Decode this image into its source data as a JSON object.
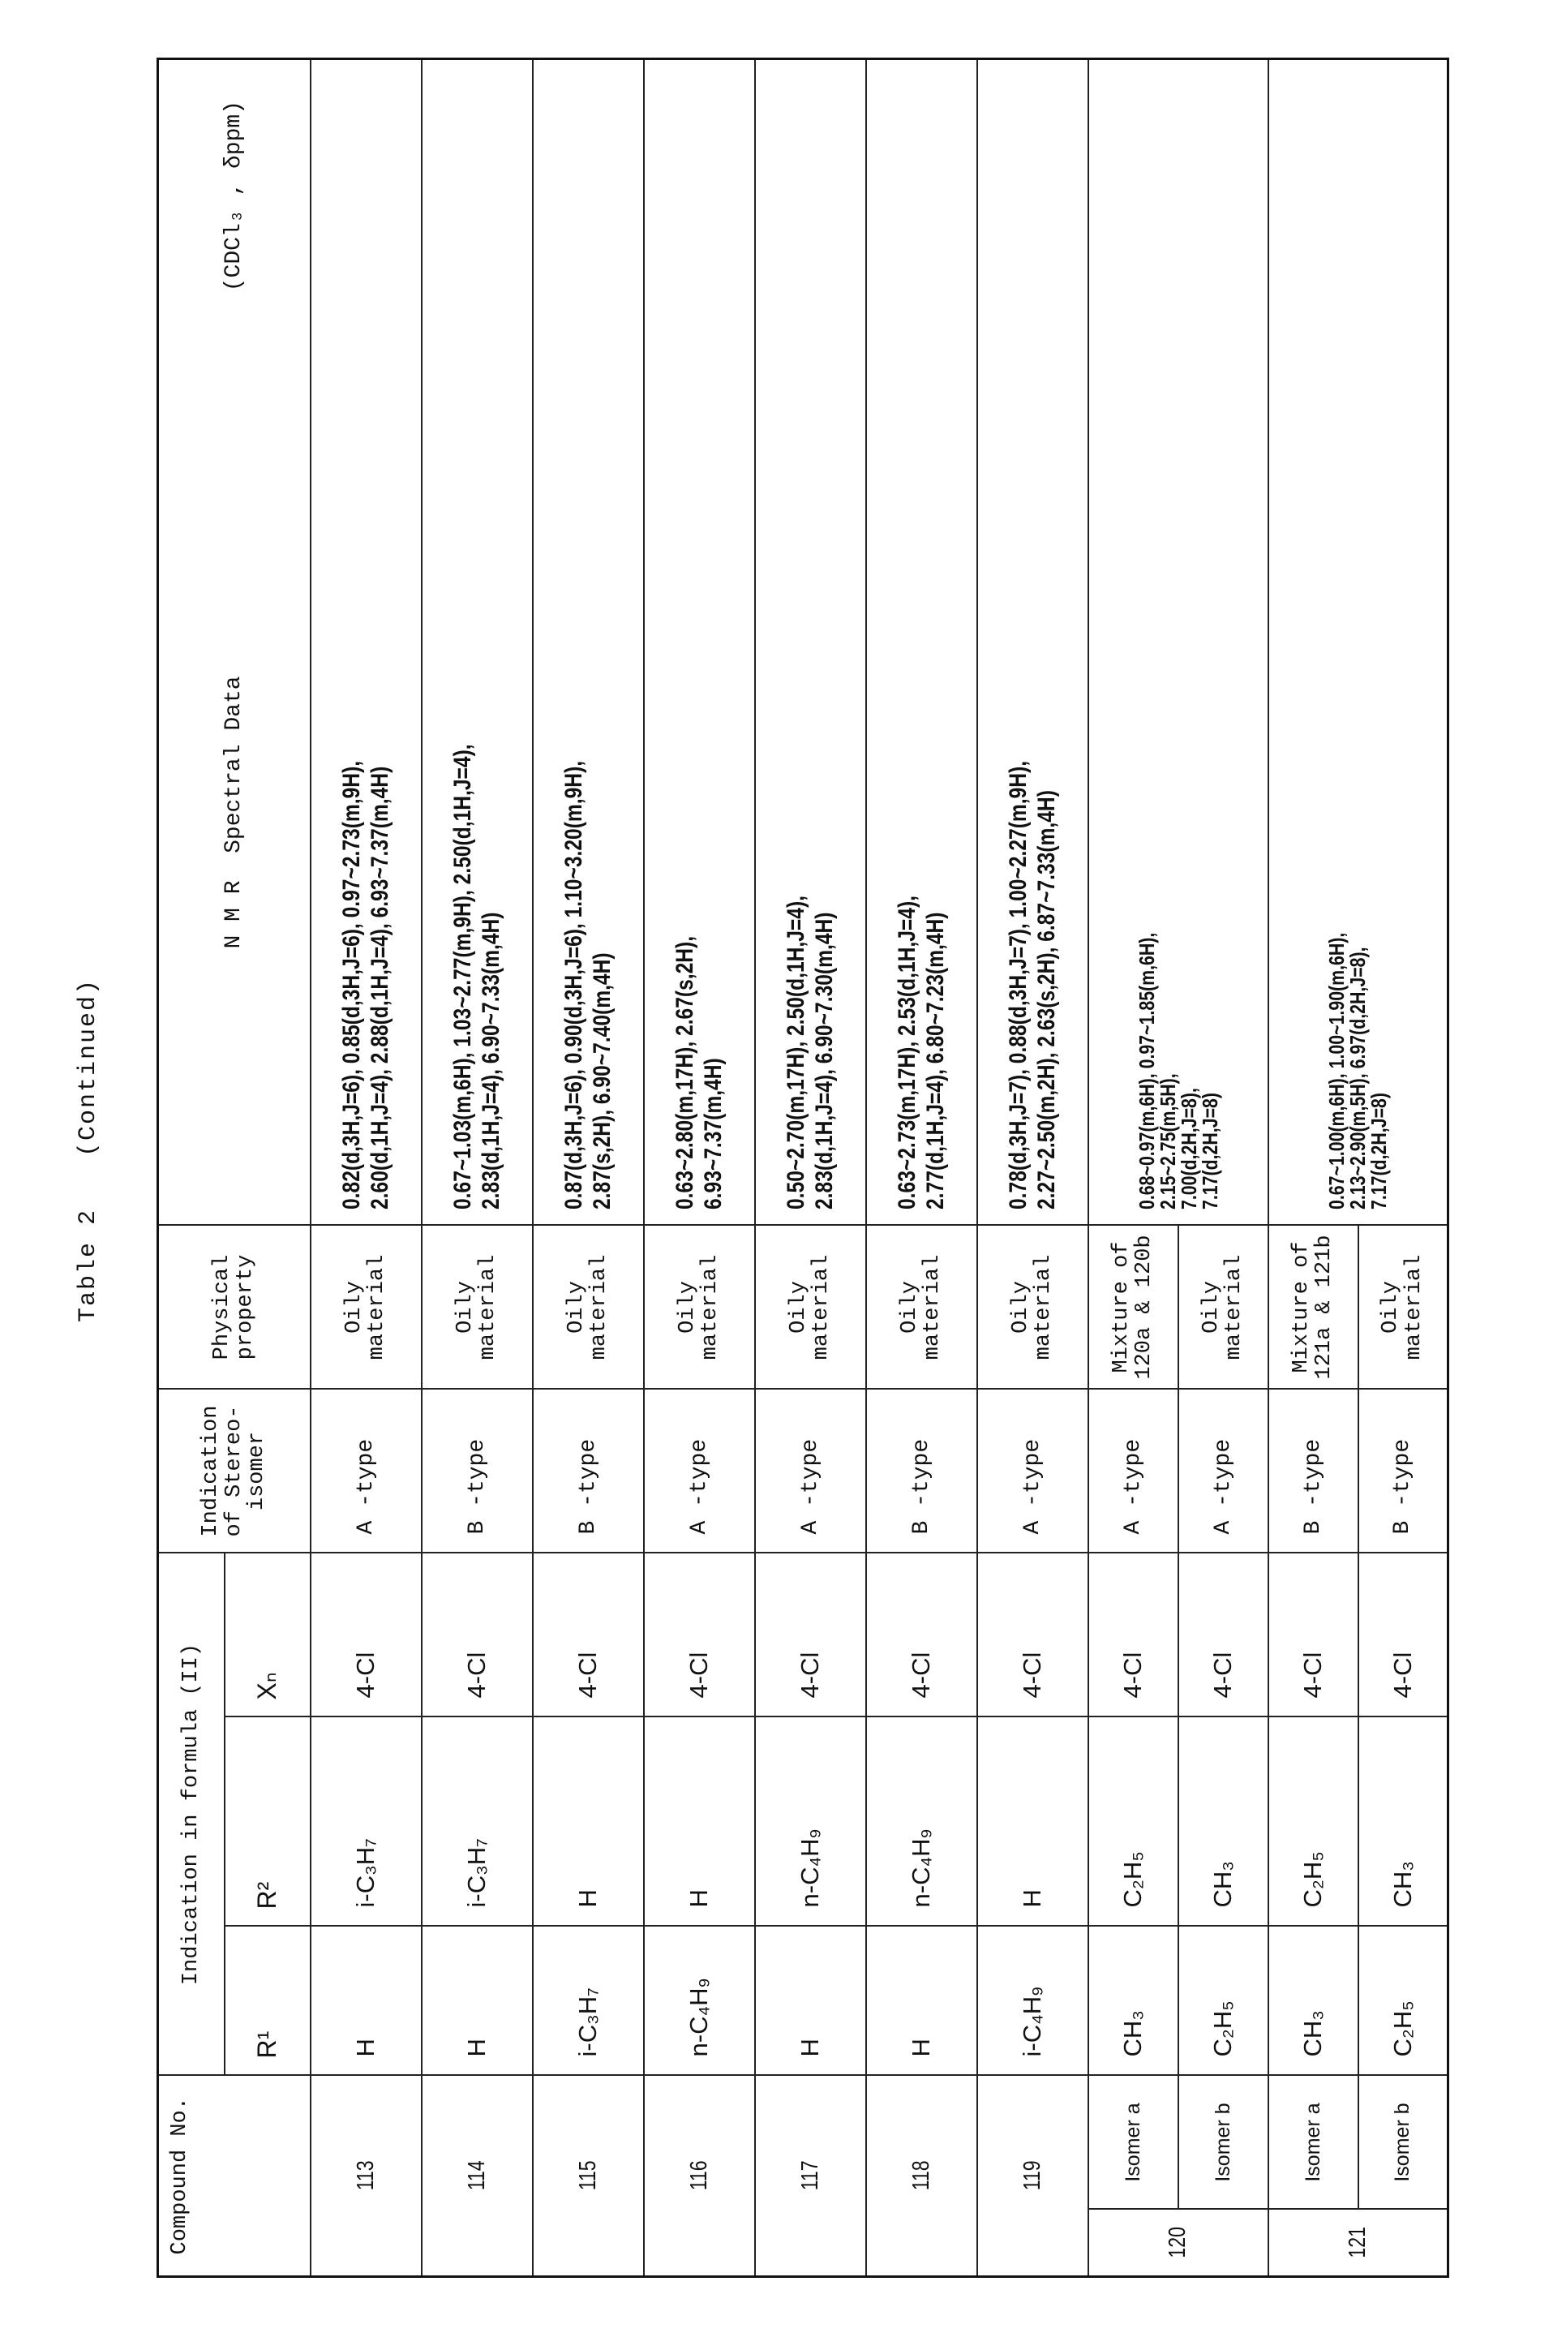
{
  "title": {
    "label": "Table 2",
    "continued": "(Continued)"
  },
  "headers": {
    "compound_no": "Compound No.",
    "formula_group": "Indication in formula (II)",
    "r1": "R¹",
    "r2": "R²",
    "xn": "Xₙ",
    "stereo": "Indication of Stereo-isomer",
    "physical": "Physical property",
    "nmr": "N M R  Spectral Data",
    "nmr_units": "(CDCl₃ , δppm)"
  },
  "rows": [
    {
      "no": "113",
      "r1": "H",
      "r2": "i-C₃H₇",
      "xn": "4-Cl",
      "stereo": "A -type",
      "phys": "Oily material",
      "nmr": [
        "0.82(d,3H,J=6), 0.85(d,3H,J=6), 0.97~2.73(m,9H),",
        "2.60(d,1H,J=4), 2.88(d,1H,J=4), 6.93~7.37(m,4H)"
      ]
    },
    {
      "no": "114",
      "r1": "H",
      "r2": "i-C₃H₇",
      "xn": "4-Cl",
      "stereo": "B -type",
      "phys": "Oily material",
      "nmr": [
        "0.67~1.03(m,6H), 1.03~2.77(m,9H), 2.50(d,1H,J=4),",
        "2.83(d,1H,J=4), 6.90~7.33(m,4H)"
      ]
    },
    {
      "no": "115",
      "r1": "i-C₃H₇",
      "r2": "H",
      "xn": "4-Cl",
      "stereo": "B -type",
      "phys": "Oily material",
      "nmr": [
        "0.87(d,3H,J=6), 0.90(d,3H,J=6), 1.10~3.20(m,9H),",
        "2.87(s,2H), 6.90~7.40(m,4H)"
      ]
    },
    {
      "no": "116",
      "r1": "n-C₄H₉",
      "r2": "H",
      "xn": "4-Cl",
      "stereo": "A -type",
      "phys": "Oily material",
      "nmr": [
        "0.63~2.80(m,17H), 2.67(s,2H),",
        "6.93~7.37(m,4H)"
      ]
    },
    {
      "no": "117",
      "r1": "H",
      "r2": "n-C₄H₉",
      "xn": "4-Cl",
      "stereo": "A -type",
      "phys": "Oily material",
      "nmr": [
        "0.50~2.70(m,17H), 2.50(d,1H,J=4),",
        "2.83(d,1H,J=4), 6.90~7.30(m,4H)"
      ]
    },
    {
      "no": "118",
      "r1": "H",
      "r2": "n-C₄H₉",
      "xn": "4-Cl",
      "stereo": "B -type",
      "phys": "Oily material",
      "nmr": [
        "0.63~2.73(m,17H), 2.53(d,1H,J=4),",
        "2.77(d,1H,J=4), 6.80~7.23(m,4H)"
      ]
    },
    {
      "no": "119",
      "r1": "i-C₄H₉",
      "r2": "H",
      "xn": "4-Cl",
      "stereo": "A -type",
      "phys": "Oily material",
      "nmr": [
        "0.78(d,3H,J=7), 0.88(d,3H,J=7), 1.00~2.27(m,9H),",
        "2.27~2.50(m,2H), 2.63(s,2H), 6.87~7.33(m,4H)"
      ]
    }
  ],
  "isomer_rows": [
    {
      "no": "120",
      "a": {
        "iso": "Isomer a",
        "r1": "CH₃",
        "r2": "C₂H₅",
        "xn": "4-Cl",
        "stereo": "A -type",
        "phys": "Mixture of 120a & 120b"
      },
      "b": {
        "iso": "Isomer b",
        "r1": "C₂H₅",
        "r2": "CH₃",
        "xn": "4-Cl",
        "stereo": "A -type",
        "phys": "Oily material"
      },
      "nmr": [
        "0.68~0.97(m,6H), 0.97~1.85(m,6H),",
        "2.15~2.75(m,5H),",
        "7.00(d,2H,J=8),",
        "7.17(d,2H,J=8)"
      ]
    },
    {
      "no": "121",
      "a": {
        "iso": "Isomer a",
        "r1": "CH₃",
        "r2": "C₂H₅",
        "xn": "4-Cl",
        "stereo": "B -type",
        "phys": "Mixture of 121a & 121b"
      },
      "b": {
        "iso": "Isomer b",
        "r1": "C₂H₅",
        "r2": "CH₃",
        "xn": "4-Cl",
        "stereo": "B -type",
        "phys": "Oily material"
      },
      "nmr": [
        "0.67~1.00(m,6H), 1.00~1.90(m,6H),",
        "2.13~2.90(m,5H), 6.97(d,2H,J=8),",
        "7.17(d,2H,J=8)"
      ]
    }
  ]
}
